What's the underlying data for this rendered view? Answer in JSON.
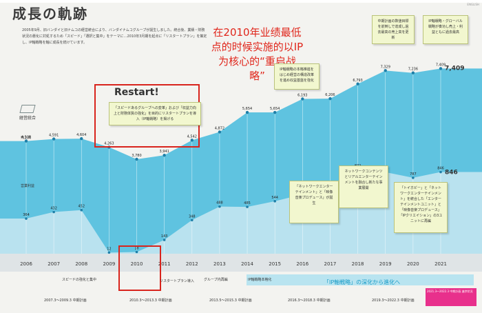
{
  "header": {
    "title": "成長の軌跡",
    "corner_label": "ENGLISH"
  },
  "intro": {
    "text": "2005年9月、旧バンダイと旧ナムコの経営統合により、バンダイナムコグループが誕生しました。統合後、業績・財務状況の悪化に対処するため「スピード」「選択と集中」をテーマに…2010年3月期を起点に「リスタートプラン」を策定し、IP軸戦略を軸に成長を続けています。"
  },
  "annotation": {
    "text": "在2010年业绩最低点的时候实施的以IP为核心的“重启战略”"
  },
  "restart": {
    "label": "Restart!",
    "callout": "「スピードあるグループへの変革」および「収益力向上と財務体質の強化」を目的にリスタートプランを導入（IP軸戦略）を掲げる"
  },
  "brand": {
    "label": "経営統合"
  },
  "axis": {
    "sales_label": "売上高",
    "profit_label": "営業利益"
  },
  "callouts": [
    {
      "text": "IP軸戦略の本格推進をはじめ経営の構造改革を進め収益基盤を強化"
    },
    {
      "text": "中期計画の数値目標を前倒しで達成し過去最高の売上高を更新"
    },
    {
      "text": "IP軸戦略・グローバル戦略が奏功し売上・利益ともに過去最高"
    },
    {
      "text": "「ネットワークエンターテインメント」と「映像音楽プロデュース」が誕生"
    },
    {
      "text": "ネットワークコンテンツとリアルエンターテインメントを融合し新たな事業展開"
    },
    {
      "text": "「トイホビー」と「ネットワークエンターテインメント」を統合した「エンターテインメントユニット」と「映像音楽プロデュース」「IPクリエイション」の3ユニットに再編"
    }
  ],
  "chart_data": {
    "type": "area",
    "categories": [
      "2006",
      "2007",
      "2008",
      "2009",
      "2010",
      "2011",
      "2012",
      "2013",
      "2014",
      "2015",
      "2016",
      "2017",
      "2018",
      "2019",
      "2020",
      "2021"
    ],
    "series": [
      {
        "name": "売上高",
        "values": [
          4508,
          4591,
          4604,
          4263,
          3780,
          3941,
          4542,
          4872,
          5654,
          5654,
          6193,
          6206,
          6793,
          7329,
          7236,
          7409
        ]
      },
      {
        "name": "営業利益",
        "values": [
          364,
          432,
          452,
          12,
          18,
          143,
          348,
          488,
          485,
          544,
          615,
          701,
          872,
          845,
          787,
          846
        ]
      }
    ],
    "value_labels": {
      "sales": [
        "4,508",
        "4,591",
        "4,604",
        "4,263",
        "3,780",
        "3,941",
        "4,542",
        "4,872",
        "5,654",
        "5,654",
        "6,193",
        "6,206",
        "6,793",
        "7,329",
        "7,236",
        "7,409"
      ],
      "profit": [
        "364",
        "432",
        "452",
        "12",
        "18",
        "143",
        "348",
        "488",
        "485",
        "544",
        "615",
        "701",
        "872",
        "845",
        "787",
        "846"
      ]
    },
    "highlight": {
      "year": "2010"
    }
  },
  "timeline": {
    "banner": "「IP軸戦略」の深化から進化へ",
    "items": [
      "スピードの強化と集中",
      "リスタートプラン導入",
      "グループ内再編",
      "IP軸戦略本格化"
    ],
    "plans": [
      "2007.3〜2009.3 中期計画",
      "2010.3〜2013.3 中期計画",
      "2013.5〜2015.3 中期計画",
      "2016.3〜2018.3 中期計画",
      "2019.3〜2022.3 中期計画"
    ]
  },
  "footer": {
    "note": "2021.3〜2022.3 中期計画 進捗状況"
  },
  "colors": {
    "sales_area": "#5fc3e0",
    "profit_area": "#b9e2ef",
    "accent_red": "#d8231c",
    "callout_bg": "#f2f7cf"
  }
}
